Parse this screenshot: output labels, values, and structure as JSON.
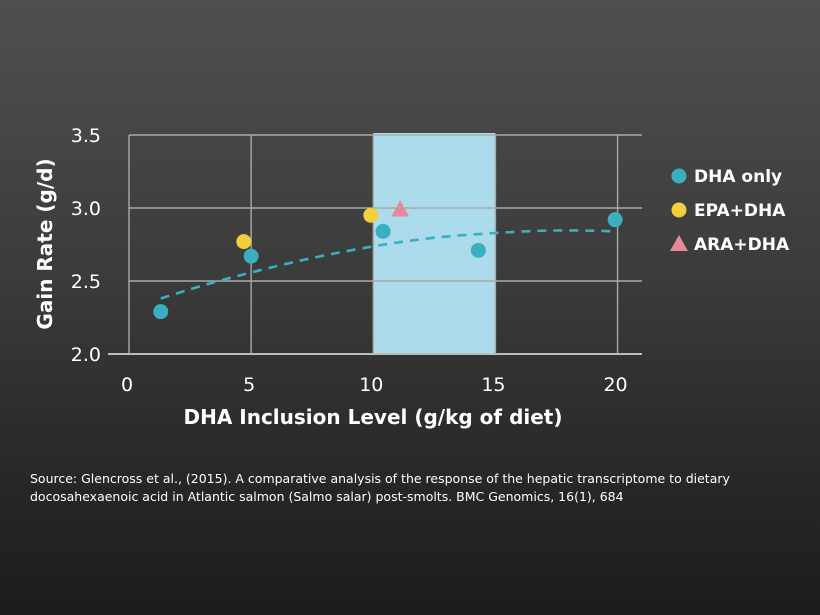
{
  "chart_data": {
    "type": "scatter",
    "xlabel": "DHA Inclusion Level (g/kg of diet)",
    "ylabel": "Gain Rate (g/d)",
    "xlim": [
      0,
      21
    ],
    "ylim": [
      2.0,
      3.5
    ],
    "x_ticks": [
      0,
      5,
      10,
      15,
      20
    ],
    "y_ticks": [
      2.0,
      2.5,
      3.0,
      3.5
    ],
    "x_tick_labels": [
      "0",
      "5",
      "10",
      "15",
      "20"
    ],
    "y_tick_labels": [
      "2.0",
      "2.5",
      "3.0",
      "3.5"
    ],
    "grid": "horizontal and vertical",
    "legend_position": "right",
    "highlight_band": {
      "x": [
        10,
        15
      ],
      "color": "#acdbeb"
    },
    "series": [
      {
        "name": "DHA only",
        "marker": "circle",
        "color": "#3aafc0",
        "points": [
          [
            1.3,
            2.29
          ],
          [
            5.0,
            2.67
          ],
          [
            10.4,
            2.84
          ],
          [
            14.3,
            2.71
          ],
          [
            19.9,
            2.92
          ]
        ]
      },
      {
        "name": "EPA+DHA",
        "marker": "circle",
        "color": "#f2cf3c",
        "points": [
          [
            4.7,
            2.77
          ],
          [
            9.9,
            2.95
          ]
        ]
      },
      {
        "name": "ARA+DHA",
        "marker": "triangle",
        "color": "#e8889a",
        "points": [
          [
            11.1,
            2.99
          ]
        ]
      }
    ],
    "trend": {
      "style": "dashed",
      "color": "#3aafc0",
      "points": [
        [
          1.3,
          2.38
        ],
        [
          3.0,
          2.47
        ],
        [
          5.0,
          2.56
        ],
        [
          7.5,
          2.66
        ],
        [
          10.0,
          2.74
        ],
        [
          12.5,
          2.8
        ],
        [
          15.0,
          2.83
        ],
        [
          17.5,
          2.85
        ],
        [
          20.0,
          2.84
        ]
      ]
    }
  },
  "source_text": "Source: Glencross et al., (2015). A comparative analysis of the response of the hepatic transcriptome to dietary docosahexaenoic acid in Atlantic salmon (Salmo salar) post-smolts. BMC Genomics, 16(1), 684"
}
